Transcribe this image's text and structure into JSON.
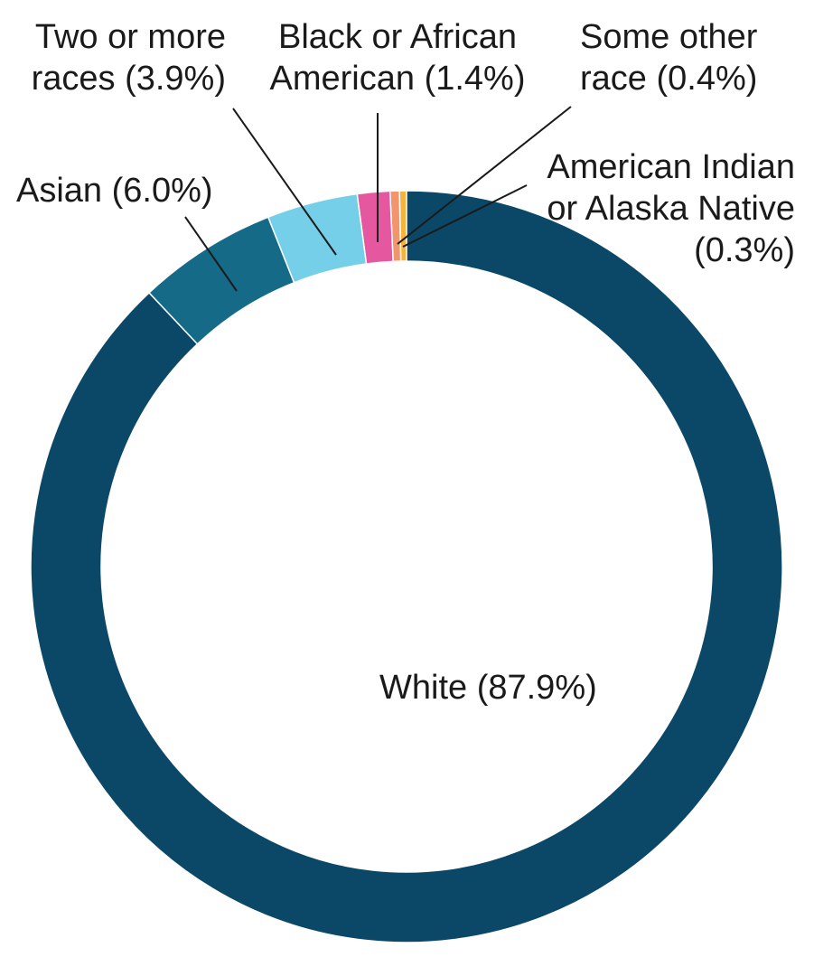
{
  "chart_data": {
    "type": "donut",
    "categories": [
      "White",
      "Asian",
      "Two or more races",
      "Black or African American",
      "Some other race",
      "American Indian or Alaska Native"
    ],
    "values": [
      87.9,
      6.0,
      3.9,
      1.4,
      0.4,
      0.3
    ],
    "value_labels": [
      "(87.9%)",
      "(6.0%)",
      "(3.9%)",
      "(1.4%)",
      "(0.4%)",
      "(0.3%)"
    ],
    "colors": [
      "#0b4868",
      "#146a87",
      "#75cfe8",
      "#e5579e",
      "#f2956b",
      "#f5b33c"
    ]
  }
}
